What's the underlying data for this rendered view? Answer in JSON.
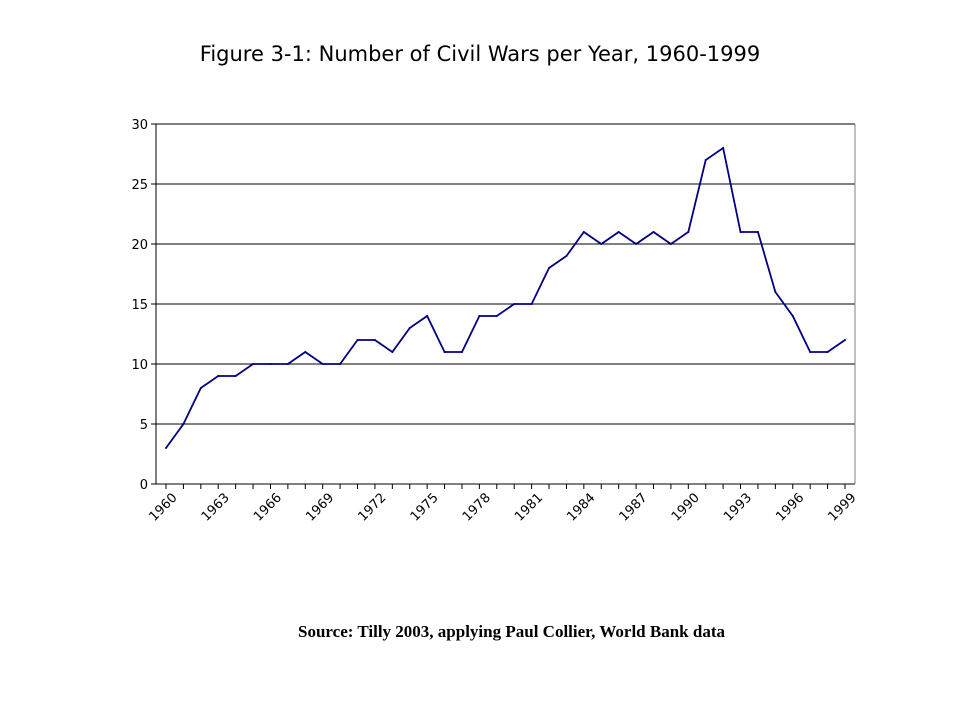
{
  "chart_data": {
    "type": "line",
    "title": "Figure 3-1: Number of Civil Wars per Year, 1960-1999",
    "xlabel": "",
    "ylabel": "",
    "x": [
      1960,
      1961,
      1962,
      1963,
      1964,
      1965,
      1966,
      1967,
      1968,
      1969,
      1970,
      1971,
      1972,
      1973,
      1974,
      1975,
      1976,
      1977,
      1978,
      1979,
      1980,
      1981,
      1982,
      1983,
      1984,
      1985,
      1986,
      1987,
      1988,
      1989,
      1990,
      1991,
      1992,
      1993,
      1994,
      1995,
      1996,
      1997,
      1998,
      1999
    ],
    "x_tick_labels": [
      "1960",
      "1963",
      "1966",
      "1969",
      "1972",
      "1975",
      "1978",
      "1981",
      "1984",
      "1987",
      "1990",
      "1993",
      "1996",
      "1999"
    ],
    "series": [
      {
        "values": [
          3,
          5,
          8,
          9,
          9,
          10,
          10,
          10,
          11,
          10,
          10,
          12,
          12,
          11,
          13,
          14,
          11,
          11,
          14,
          14,
          15,
          15,
          18,
          19,
          21,
          20,
          21,
          20,
          21,
          20,
          21,
          27,
          28,
          21,
          21,
          16,
          14,
          11,
          11,
          12
        ],
        "color": "#000080"
      }
    ],
    "y_ticks": [
      0,
      5,
      10,
      15,
      20,
      25,
      30
    ],
    "ylim": [
      0,
      30
    ],
    "grid": true,
    "legend": "none"
  },
  "source": "Source: Tilly 2003, applying Paul Collier, World Bank data"
}
